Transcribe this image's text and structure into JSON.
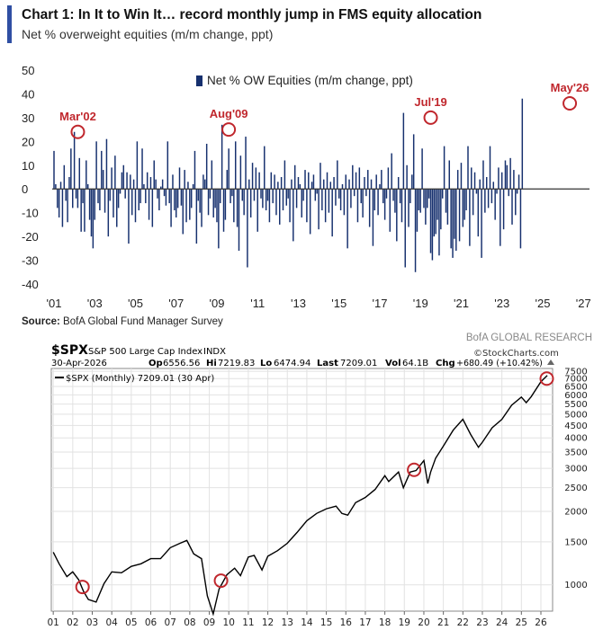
{
  "header": {
    "title": "Chart 1: In It to Win It… record monthly jump in FMS equity allocation",
    "subtitle": "Net % overweight equities (m/m change, ppt)"
  },
  "source": {
    "label": "Source:",
    "text": "BofA Global Fund Manager Survey"
  },
  "brand": "BofA GLOBAL RESEARCH",
  "colors": {
    "bar": "#16306e",
    "accent": "#2f4fa3",
    "annotation": "#c0272d",
    "line": "#000000"
  },
  "chart_data": [
    {
      "type": "bar",
      "title": "Net % overweight equities (m/m change, ppt)",
      "legend": {
        "label": "Net % OW Equities (m/m change, ppt)",
        "position": "top-center"
      },
      "ylim": [
        -40,
        50
      ],
      "yticks": [
        50,
        40,
        30,
        20,
        10,
        0,
        -10,
        -20,
        -30,
        -40
      ],
      "xlim": [
        2001.0,
        2027.3
      ],
      "xticks": [
        "'01",
        "'03",
        "'05",
        "'07",
        "'09",
        "'11",
        "'13",
        "'15",
        "'17",
        "'19",
        "'21",
        "'23",
        "'25",
        "'27"
      ],
      "xtick_years": [
        2001,
        2003,
        2005,
        2007,
        2009,
        2011,
        2013,
        2015,
        2017,
        2019,
        2021,
        2023,
        2025,
        2027
      ],
      "start": 2001.0,
      "step": 0.08333,
      "values": [
        16,
        2,
        -8,
        -12,
        3,
        -16,
        10,
        -5,
        -14,
        5,
        17,
        -8,
        24,
        -4,
        -8,
        13,
        -18,
        -6,
        -18,
        12,
        2,
        -13,
        -20,
        -25,
        -13,
        20,
        -6,
        -9,
        16,
        8,
        -10,
        21,
        -20,
        -5,
        9,
        -12,
        14,
        -16,
        -8,
        -2,
        7,
        10,
        -4,
        7,
        -23,
        6,
        -11,
        4,
        -14,
        20,
        -9,
        -6,
        17,
        2,
        -6,
        7,
        -13,
        5,
        -16,
        12,
        4,
        -4,
        -9,
        1,
        4,
        -3,
        -7,
        20,
        -6,
        -16,
        6,
        -9,
        -12,
        -8,
        9,
        -7,
        -19,
        8,
        -14,
        3,
        -13,
        -8,
        2,
        16,
        -23,
        -5,
        -10,
        -16,
        6,
        4,
        19,
        -11,
        -4,
        12,
        -12,
        -8,
        -14,
        -25,
        -6,
        27,
        -18,
        -13,
        8,
        17,
        -6,
        -3,
        -14,
        20,
        -16,
        -26,
        14,
        -5,
        -11,
        22,
        -33,
        4,
        -12,
        11,
        -5,
        9,
        -18,
        7,
        -4,
        -8,
        18,
        -9,
        -5,
        -14,
        7,
        -6,
        6,
        -11,
        3,
        -15,
        5,
        -9,
        12,
        -7,
        -4,
        -14,
        4,
        -22,
        10,
        -8,
        5,
        2,
        -12,
        -5,
        8,
        -14,
        7,
        -19,
        3,
        6,
        -5,
        -2,
        -17,
        11,
        -9,
        4,
        -14,
        7,
        -10,
        3,
        -20,
        5,
        -7,
        12,
        -4,
        -9,
        2,
        -11,
        6,
        -25,
        4,
        -8,
        10,
        -3,
        7,
        -14,
        9,
        -6,
        -12,
        5,
        -3,
        8,
        -16,
        4,
        -24,
        -9,
        6,
        -11,
        2,
        8,
        -6,
        -13,
        -4,
        9,
        -18,
        15,
        -5,
        -10,
        -22,
        5,
        -6,
        -14,
        32,
        -33,
        10,
        -16,
        -6,
        6,
        23,
        -35,
        -18,
        -9,
        -10,
        17,
        -8,
        -15,
        -8,
        -4,
        -27,
        -30,
        -20,
        -19,
        -13,
        -28,
        -17,
        -4,
        18,
        -10,
        -15,
        12,
        -25,
        -29,
        -21,
        -26,
        8,
        -22,
        11,
        -16,
        -13,
        -9,
        18,
        -24,
        9,
        -11,
        7,
        -2,
        -20,
        4,
        -29,
        12,
        -10,
        5,
        -8,
        18,
        -6,
        3,
        -13,
        -2,
        9,
        -24,
        7,
        -17,
        12,
        10,
        -3,
        13,
        -15,
        8,
        -11,
        -2,
        6,
        -25,
        38
      ],
      "annotations": [
        {
          "label": "Mar'02",
          "x": 2002.17,
          "y": 24
        },
        {
          "label": "Aug'09",
          "x": 2009.58,
          "y": 25
        },
        {
          "label": "Jul'19",
          "x": 2019.5,
          "y": 30
        },
        {
          "label": "May'26",
          "x": 2026.33,
          "y": 36
        }
      ]
    },
    {
      "type": "line",
      "symbol": "$SPX",
      "name": "S&P 500 Large Cap Index",
      "exchange": "INDX",
      "date": "30-Apr-2026",
      "open_label": "Op",
      "open": "6556.56",
      "high_label": "Hi",
      "high": "7219.83",
      "low_label": "Lo",
      "low": "6474.94",
      "last_label": "Last",
      "last": "7209.01",
      "vol_label": "Vol",
      "vol": "64.1B",
      "chg_label": "Chg",
      "chg": "+680.49 (+10.42%)",
      "brand": "©StockCharts.com",
      "legend": {
        "label": "$SPX (Monthly) 7209.01 (30 Apr)",
        "position": "top-left"
      },
      "log_scale": true,
      "ylim": [
        780,
        7700
      ],
      "ytick_labels": [
        "7500",
        "7000",
        "6500",
        "6000",
        "5500",
        "5000",
        "4500",
        "4000",
        "3500",
        "3000",
        "2500",
        "2000",
        "1500",
        "1000"
      ],
      "yticks": [
        7500,
        7000,
        6500,
        6000,
        5500,
        5000,
        4500,
        4000,
        3500,
        3000,
        2500,
        2000,
        1500,
        1000
      ],
      "xlim": [
        2000.9,
        2026.6
      ],
      "xtick_labels": [
        "01",
        "02",
        "03",
        "04",
        "05",
        "06",
        "07",
        "08",
        "09",
        "10",
        "11",
        "12",
        "13",
        "14",
        "15",
        "16",
        "17",
        "18",
        "19",
        "20",
        "21",
        "22",
        "23",
        "24",
        "25",
        "26"
      ],
      "x": [
        2001.0,
        2001.3,
        2001.7,
        2002.0,
        2002.3,
        2002.55,
        2002.8,
        2003.2,
        2003.6,
        2004.0,
        2004.5,
        2005.0,
        2005.5,
        2006.0,
        2006.5,
        2007.0,
        2007.5,
        2007.85,
        2008.2,
        2008.6,
        2008.9,
        2009.2,
        2009.5,
        2009.9,
        2010.3,
        2010.6,
        2011.0,
        2011.3,
        2011.7,
        2012.0,
        2012.5,
        2013.0,
        2013.5,
        2014.0,
        2014.5,
        2015.0,
        2015.5,
        2015.8,
        2016.1,
        2016.5,
        2017.0,
        2017.5,
        2018.0,
        2018.2,
        2018.7,
        2018.95,
        2019.3,
        2019.6,
        2020.0,
        2020.2,
        2020.35,
        2020.6,
        2021.0,
        2021.5,
        2022.0,
        2022.4,
        2022.8,
        2023.0,
        2023.5,
        2024.0,
        2024.5,
        2025.0,
        2025.25,
        2025.5,
        2026.0,
        2026.33
      ],
      "y": [
        1360,
        1220,
        1080,
        1130,
        1050,
        940,
        870,
        850,
        1010,
        1130,
        1120,
        1190,
        1220,
        1280,
        1280,
        1420,
        1480,
        1520,
        1340,
        1280,
        900,
        760,
        960,
        1100,
        1170,
        1090,
        1300,
        1320,
        1150,
        1310,
        1380,
        1480,
        1640,
        1830,
        1960,
        2050,
        2100,
        1960,
        1930,
        2170,
        2280,
        2460,
        2800,
        2650,
        2900,
        2500,
        2900,
        2940,
        3230,
        2600,
        2900,
        3300,
        3700,
        4300,
        4770,
        4130,
        3660,
        3840,
        4400,
        4760,
        5450,
        5880,
        5580,
        5900,
        6800,
        7209
      ],
      "annotations": [
        {
          "x": 2002.5,
          "y": 980
        },
        {
          "x": 2009.6,
          "y": 1040
        },
        {
          "x": 2019.5,
          "y": 2960
        },
        {
          "x": 2026.3,
          "y": 7000
        }
      ]
    }
  ]
}
